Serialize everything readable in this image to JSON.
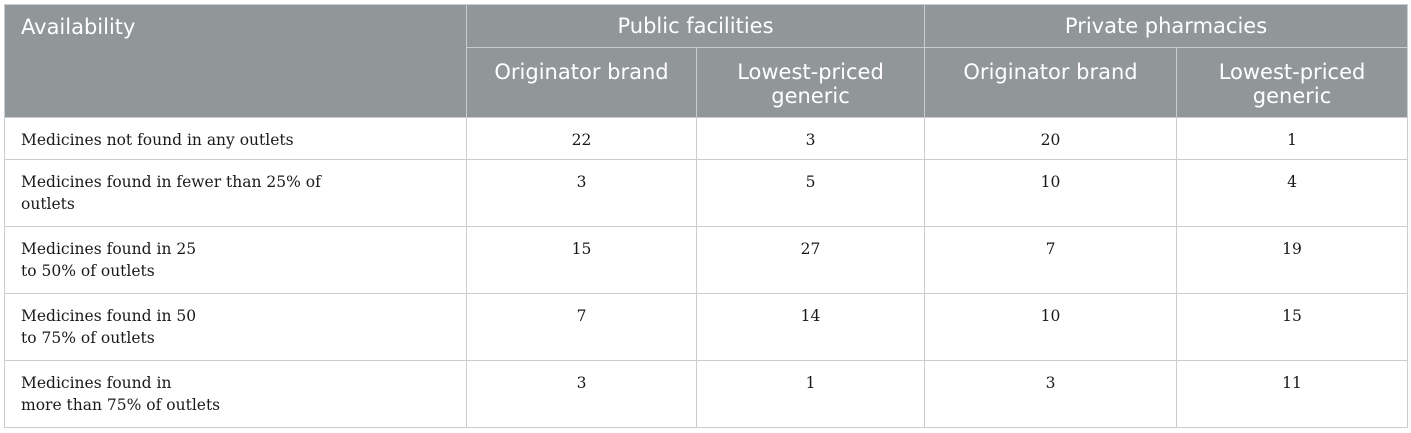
{
  "table": {
    "header": {
      "availability": "Availability",
      "groups": [
        "Public facilities",
        "Private pharmacies"
      ],
      "subheaders": [
        "Originator brand",
        "Lowest-priced generic",
        "Originator brand",
        "Lowest-priced generic"
      ]
    },
    "rows": [
      {
        "label_lines": [
          "Medicines not found in any outlets"
        ],
        "values": [
          "22",
          "3",
          "20",
          "1"
        ]
      },
      {
        "label_lines": [
          "Medicines found in fewer than 25% of",
          "outlets"
        ],
        "values": [
          "3",
          "5",
          "10",
          "4"
        ]
      },
      {
        "label_lines": [
          "Medicines found in 25",
          "to 50% of outlets"
        ],
        "values": [
          "15",
          "27",
          "7",
          "19"
        ]
      },
      {
        "label_lines": [
          "Medicines found in 50",
          "to 75% of outlets"
        ],
        "values": [
          "7",
          "14",
          "10",
          "15"
        ]
      },
      {
        "label_lines": [
          "Medicines found in",
          "more than 75% of outlets"
        ],
        "values": [
          "3",
          "1",
          "3",
          "11"
        ]
      }
    ]
  }
}
